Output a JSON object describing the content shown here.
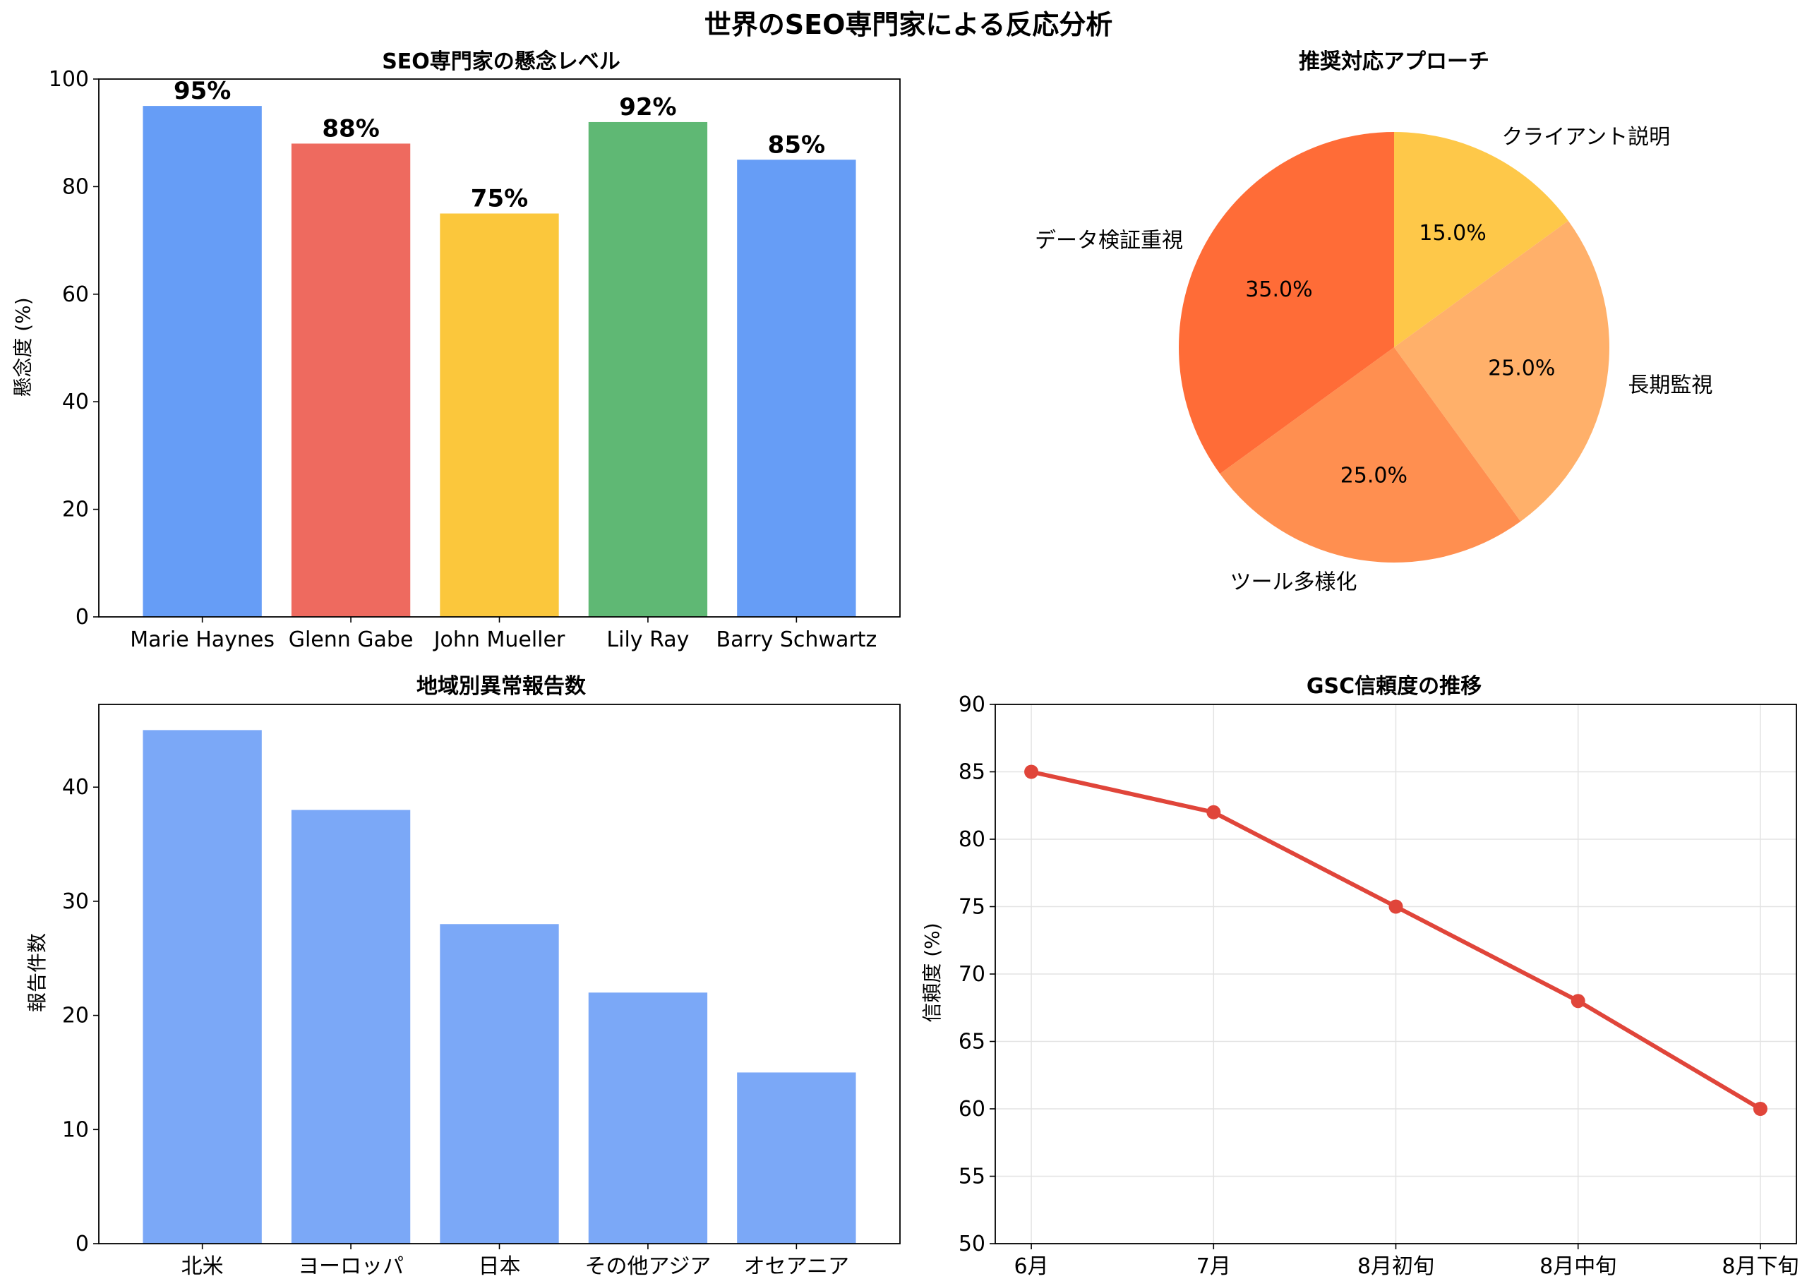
{
  "figure": {
    "title": "世界のSEO専門家による反応分析"
  },
  "chart_data": [
    {
      "type": "bar",
      "title": "SEO専門家の懸念レベル",
      "categories": [
        "Marie Haynes",
        "Glenn Gabe",
        "John Mueller",
        "Lily Ray",
        "Barry Schwartz"
      ],
      "values": [
        95,
        88,
        75,
        92,
        85
      ],
      "value_labels": [
        "95%",
        "88%",
        "75%",
        "92%",
        "85%"
      ],
      "colors": [
        "#669df6",
        "#ee6a5f",
        "#fbc73c",
        "#5fb874",
        "#669df6"
      ],
      "xlabel": "",
      "ylabel": "懸念度 (%)",
      "ylim": [
        0,
        100
      ],
      "yticks": [
        0,
        20,
        40,
        60,
        80,
        100
      ],
      "grid": false
    },
    {
      "type": "pie",
      "title": "推奨対応アプローチ",
      "labels": [
        "クライアント説明",
        "長期監視",
        "ツール多様化",
        "データ検証重視"
      ],
      "values": [
        15.0,
        25.0,
        25.0,
        35.0
      ],
      "pct_labels": [
        "15.0%",
        "25.0%",
        "25.0%",
        "35.0%"
      ],
      "colors": [
        "#fec849",
        "#ffb06a",
        "#ff8f50",
        "#ff6c37"
      ]
    },
    {
      "type": "bar",
      "title": "地域別異常報告数",
      "categories": [
        "北米",
        "ヨーロッパ",
        "日本",
        "その他アジア",
        "オセアニア"
      ],
      "values": [
        45,
        38,
        28,
        22,
        15
      ],
      "colors": [
        "#7ba8f7",
        "#7ba8f7",
        "#7ba8f7",
        "#7ba8f7",
        "#7ba8f7"
      ],
      "xlabel": "",
      "ylabel": "報告件数",
      "ylim": [
        0,
        47.25
      ],
      "yticks": [
        0,
        10,
        20,
        30,
        40
      ],
      "grid": false
    },
    {
      "type": "line",
      "title": "GSC信頼度の推移",
      "categories": [
        "6月",
        "7月",
        "8月初旬",
        "8月中旬",
        "8月下旬"
      ],
      "values": [
        85,
        82,
        75,
        68,
        60
      ],
      "color": "#e0453a",
      "xlabel": "",
      "ylabel": "信頼度 (%)",
      "ylim": [
        50,
        90
      ],
      "yticks": [
        50,
        55,
        60,
        65,
        70,
        75,
        80,
        85,
        90
      ],
      "grid": true
    }
  ]
}
